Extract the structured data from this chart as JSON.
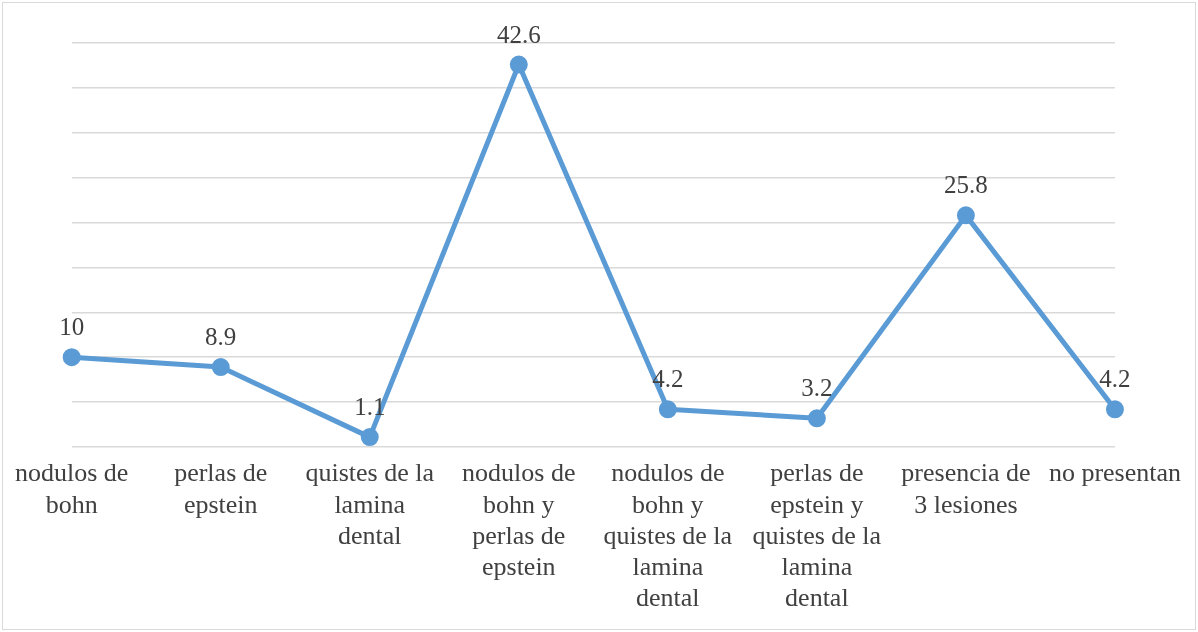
{
  "chart_data": {
    "type": "line",
    "categories": [
      "nodulos de bohn",
      "perlas de epstein",
      "quistes de la lamina dental",
      "nodulos de bohn y perlas de epstein",
      "nodulos de bohn y quistes de la lamina dental",
      "perlas de epstein y quistes de la lamina dental",
      "presencia de 3 lesiones",
      "no presentan"
    ],
    "series": [
      {
        "color": "#5b9bd5",
        "values": [
          10,
          8.9,
          1.1,
          42.6,
          4.2,
          3.2,
          25.8,
          4.2
        ]
      }
    ],
    "ylim": [
      0,
      45
    ],
    "yticks": [
      {
        "value": 0,
        "label": null
      },
      {
        "value": 5,
        "label": null
      },
      {
        "value": 10,
        "label": null
      },
      {
        "value": 15,
        "label": null
      },
      {
        "value": 20,
        "label": null
      },
      {
        "value": 25,
        "label": null
      },
      {
        "value": 30,
        "label": null
      },
      {
        "value": 35,
        "label": null
      },
      {
        "value": 40,
        "label": null
      },
      {
        "value": 45,
        "label": null
      }
    ],
    "grid": "y",
    "tick_labels": "x",
    "marker": "circle",
    "line_style": "solid",
    "legend": false,
    "data_labels": true
  }
}
